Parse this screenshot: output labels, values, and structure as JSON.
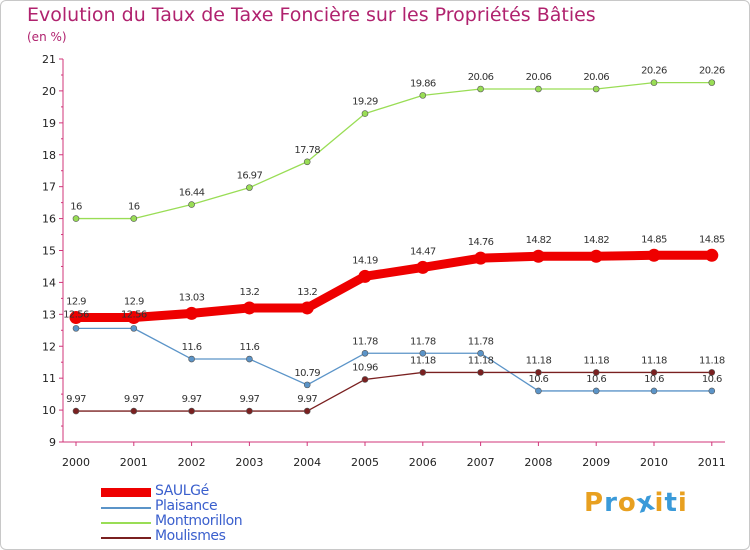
{
  "chart_data": {
    "type": "line",
    "title": "Evolution du Taux de Taxe Foncière sur les Propriétés Bâties",
    "subtitle": "(en %)",
    "xlabel": "",
    "ylabel": "",
    "categories": [
      "2000",
      "2001",
      "2002",
      "2003",
      "2004",
      "2005",
      "2006",
      "2007",
      "2008",
      "2009",
      "2010",
      "2011"
    ],
    "ylim": [
      9,
      21
    ],
    "yticks": [
      "9",
      "10",
      "11",
      "12",
      "13",
      "14",
      "15",
      "16",
      "17",
      "18",
      "19",
      "20",
      "21"
    ],
    "grid": false,
    "legend_position": "bottom-left",
    "series": [
      {
        "name": "SAULGé",
        "color": "#ee0000",
        "values": [
          12.9,
          12.9,
          13.03,
          13.2,
          13.2,
          14.19,
          14.47,
          14.76,
          14.82,
          14.82,
          14.85,
          14.85
        ],
        "labels": [
          "12.9",
          "12.9",
          "13.03",
          "13.2",
          "13.2",
          "14.19",
          "14.47",
          "14.76",
          "14.82",
          "14.82",
          "14.85",
          "14.85"
        ]
      },
      {
        "name": "Plaisance",
        "color": "#5b94c8",
        "values": [
          12.56,
          12.56,
          11.6,
          11.6,
          10.79,
          11.78,
          11.78,
          11.78,
          10.6,
          10.6,
          10.6,
          10.6
        ],
        "labels": [
          "12.56",
          "12.56",
          "11.6",
          "11.6",
          "10.79",
          "11.78",
          "11.78",
          "11.78",
          "10.6",
          "10.6",
          "10.6",
          "10.6"
        ]
      },
      {
        "name": "Montmorillon",
        "color": "#99dd55",
        "values": [
          16,
          16,
          16.44,
          16.97,
          17.78,
          19.29,
          19.86,
          20.06,
          20.06,
          20.06,
          20.26,
          20.26
        ],
        "labels": [
          "16",
          "16",
          "16.44",
          "16.97",
          "17.78",
          "19.29",
          "19.86",
          "20.06",
          "20.06",
          "20.06",
          "20.26",
          "20.26"
        ]
      },
      {
        "name": "Moulismes",
        "color": "#7a2020",
        "values": [
          9.97,
          9.97,
          9.97,
          9.97,
          9.97,
          10.96,
          11.18,
          11.18,
          11.18,
          11.18,
          11.18,
          11.18
        ],
        "labels": [
          "9.97",
          "9.97",
          "9.97",
          "9.97",
          "9.97",
          "10.96",
          "11.18",
          "11.18",
          "11.18",
          "11.18",
          "11.18",
          "11.18"
        ]
      }
    ]
  },
  "logo": {
    "letters": [
      "P",
      "r",
      "o",
      "x",
      "i",
      "t",
      "i"
    ],
    "colors": [
      "#e8a020",
      "#3a9ad9",
      "#e8a020",
      "#3a9ad9",
      "#e8a020",
      "#3a9ad9",
      "#e8a020"
    ]
  }
}
